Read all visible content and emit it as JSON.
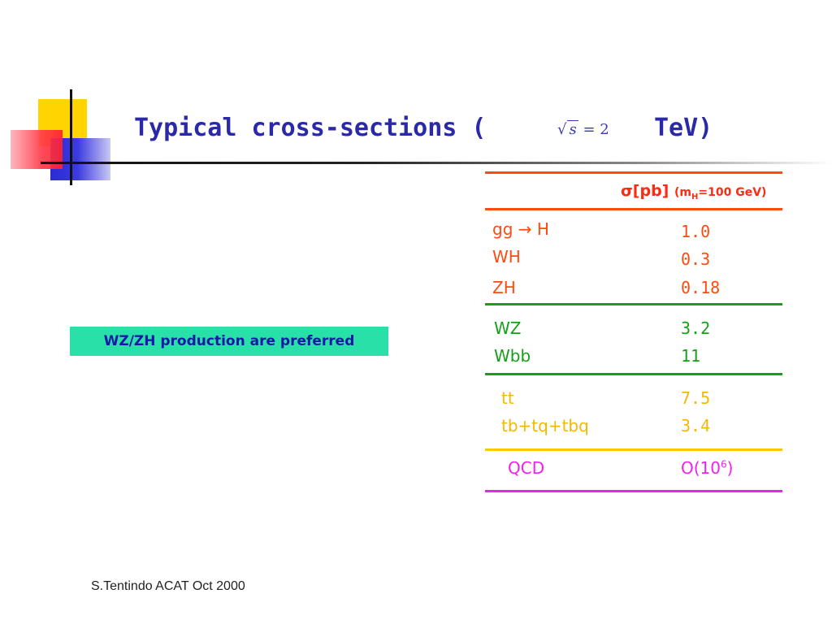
{
  "slide": {
    "title_prefix": "Typical cross-sections (",
    "sqrt_var": "s",
    "sqrt_rhs": "= 2",
    "title_suffix": "TeV)",
    "callout": "WZ/ZH production are preferred",
    "footer": "S.Tentindo ACAT Oct 2000"
  },
  "table": {
    "header_sigma": "σ[pb]",
    "header_mass_open": "(m",
    "header_mass_sub": "H",
    "header_mass_close": "=100 GeV)",
    "groups": [
      {
        "color": "#ff4a12",
        "rows": [
          {
            "process_a": "gg",
            "arrow": "→",
            "process_b": "H",
            "value": "1.0"
          },
          {
            "process": "WH",
            "value": "0.3"
          },
          {
            "process": "ZH",
            "value": "0.18"
          }
        ]
      },
      {
        "color": "#16a016",
        "rows": [
          {
            "process": "WZ",
            "value": "3.2"
          },
          {
            "process": "Wbb",
            "value": "11"
          }
        ]
      },
      {
        "color": "#f5b800",
        "rows": [
          {
            "process": "tt",
            "value": "7.5"
          },
          {
            "process": "tb+tq+tbq",
            "value": "3.4"
          }
        ]
      },
      {
        "color": "#ee22ee",
        "rows": [
          {
            "process": "QCD",
            "value_base": "O(10",
            "value_exp": "6",
            "value_close": ")"
          }
        ]
      }
    ]
  }
}
